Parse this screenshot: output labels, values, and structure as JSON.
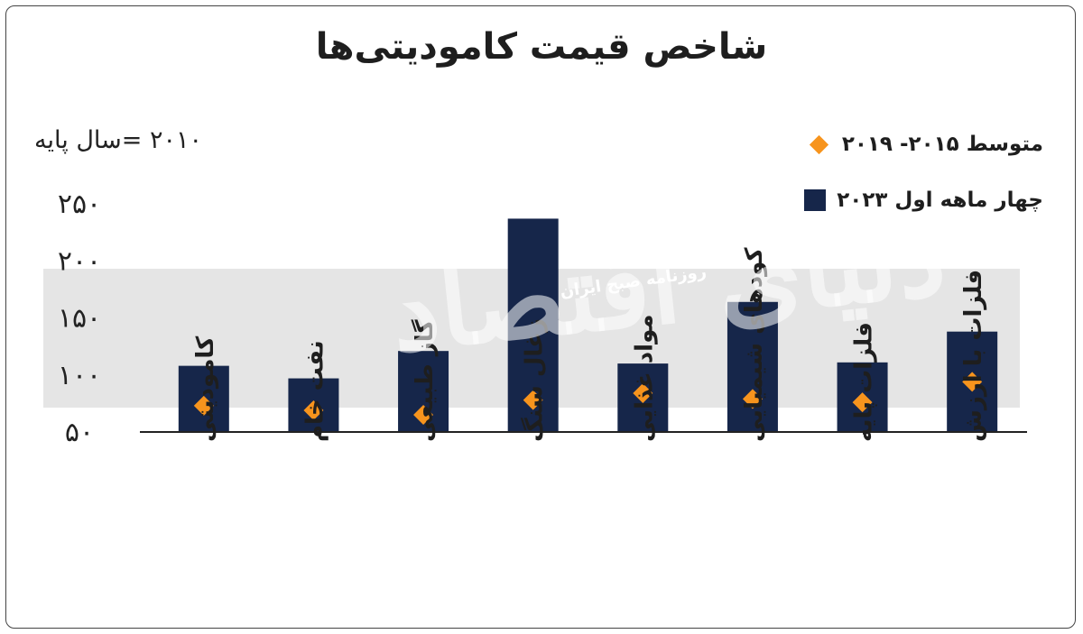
{
  "title": "شاخص قیمت کامودیتی‌ها",
  "base_label": "۲۰۱۰ =سال پایه",
  "legend": {
    "avg": "متوسط ۲۰۱۵- ۲۰۱۹",
    "current": "چهار ماهه اول ۲۰۲۳"
  },
  "watermark": {
    "logo": "دنیای اقتصاد",
    "text": "روزنامه صبح ایران"
  },
  "colors": {
    "bar": "#16264a",
    "diamond": "#f7941d",
    "band": "#dcdcdc"
  },
  "chart_data": {
    "type": "bar",
    "title": "شاخص قیمت کامودیتی‌ها",
    "ylim": [
      50,
      260
    ],
    "yticks": [
      50,
      100,
      150,
      200,
      250
    ],
    "ytick_labels": [
      "۵۰",
      "۱۰۰",
      "۱۵۰",
      "۲۰۰",
      "۲۵۰"
    ],
    "categories": [
      "کامودیتی",
      "نفت خام",
      "گاز طبیعی",
      "زغال سنگ",
      "مواد غذایی",
      "کودهای شیمیایی",
      "فلزات پایه",
      "فلزات با ارزش"
    ],
    "series": [
      {
        "name": "چهار ماهه اول ۲۰۲۳",
        "type": "bar",
        "values": [
          108,
          97,
          121,
          237,
          110,
          164,
          111,
          138
        ]
      },
      {
        "name": "متوسط ۲۰۱۵- ۲۰۱۹",
        "type": "point",
        "values": [
          73,
          69,
          65,
          78,
          84,
          79,
          76,
          94
        ]
      }
    ],
    "legend_position": "top-right",
    "grid": false
  }
}
